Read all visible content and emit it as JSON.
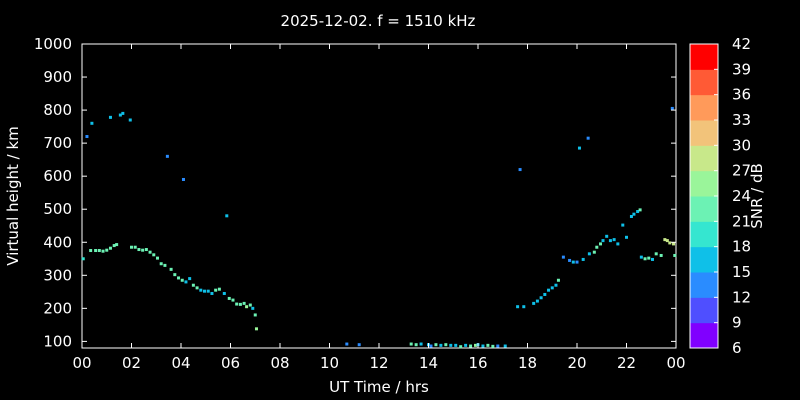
{
  "chart_data": {
    "type": "scatter",
    "title": "2025-12-02. f = 1510 kHz",
    "xlabel": "UT Time / hrs",
    "ylabel": "Virtual height / km",
    "colorbar_label": "SNR / dB",
    "xlim": [
      0,
      24
    ],
    "ylim": [
      80,
      1000
    ],
    "x_ticks": [
      "00",
      "02",
      "04",
      "06",
      "08",
      "10",
      "12",
      "14",
      "16",
      "18",
      "20",
      "22",
      "00"
    ],
    "y_ticks": [
      "100",
      "200",
      "300",
      "400",
      "500",
      "600",
      "700",
      "800",
      "900",
      "1000"
    ],
    "colorbar_ticks": [
      "6",
      "9",
      "12",
      "15",
      "18",
      "21",
      "24",
      "27",
      "30",
      "33",
      "36",
      "39",
      "42"
    ],
    "colorbar_colors": [
      "#8000ff",
      "#4f4fff",
      "#2a8cff",
      "#0fc0e8",
      "#35e6d0",
      "#6cf2b4",
      "#9af59a",
      "#c8e88a",
      "#f2c37a",
      "#ff9a5a",
      "#ff5a35",
      "#ff0000"
    ],
    "points": [
      {
        "x": 0.05,
        "y": 350,
        "snr": 18
      },
      {
        "x": 0.2,
        "y": 720,
        "snr": 12
      },
      {
        "x": 0.4,
        "y": 760,
        "snr": 15
      },
      {
        "x": 0.35,
        "y": 375,
        "snr": 22
      },
      {
        "x": 0.55,
        "y": 375,
        "snr": 22
      },
      {
        "x": 0.7,
        "y": 375,
        "snr": 22
      },
      {
        "x": 0.85,
        "y": 373,
        "snr": 22
      },
      {
        "x": 1.0,
        "y": 376,
        "snr": 22
      },
      {
        "x": 1.15,
        "y": 382,
        "snr": 22
      },
      {
        "x": 1.3,
        "y": 390,
        "snr": 22
      },
      {
        "x": 1.4,
        "y": 393,
        "snr": 22
      },
      {
        "x": 1.15,
        "y": 778,
        "snr": 15
      },
      {
        "x": 1.55,
        "y": 785,
        "snr": 15
      },
      {
        "x": 1.65,
        "y": 790,
        "snr": 15
      },
      {
        "x": 1.95,
        "y": 770,
        "snr": 15
      },
      {
        "x": 2.0,
        "y": 385,
        "snr": 22
      },
      {
        "x": 2.15,
        "y": 385,
        "snr": 22
      },
      {
        "x": 2.3,
        "y": 378,
        "snr": 22
      },
      {
        "x": 2.45,
        "y": 376,
        "snr": 22
      },
      {
        "x": 2.6,
        "y": 378,
        "snr": 22
      },
      {
        "x": 2.75,
        "y": 370,
        "snr": 22
      },
      {
        "x": 2.9,
        "y": 362,
        "snr": 22
      },
      {
        "x": 3.05,
        "y": 352,
        "snr": 22
      },
      {
        "x": 3.2,
        "y": 335,
        "snr": 22
      },
      {
        "x": 3.35,
        "y": 330,
        "snr": 22
      },
      {
        "x": 3.45,
        "y": 660,
        "snr": 12
      },
      {
        "x": 3.6,
        "y": 318,
        "snr": 22
      },
      {
        "x": 3.75,
        "y": 302,
        "snr": 22
      },
      {
        "x": 3.9,
        "y": 292,
        "snr": 22
      },
      {
        "x": 4.05,
        "y": 285,
        "snr": 22
      },
      {
        "x": 4.1,
        "y": 590,
        "snr": 12
      },
      {
        "x": 4.2,
        "y": 280,
        "snr": 15
      },
      {
        "x": 4.35,
        "y": 290,
        "snr": 15
      },
      {
        "x": 4.5,
        "y": 270,
        "snr": 22
      },
      {
        "x": 4.65,
        "y": 262,
        "snr": 22
      },
      {
        "x": 4.8,
        "y": 255,
        "snr": 15
      },
      {
        "x": 4.95,
        "y": 252,
        "snr": 15
      },
      {
        "x": 5.1,
        "y": 252,
        "snr": 15
      },
      {
        "x": 5.25,
        "y": 245,
        "snr": 15
      },
      {
        "x": 5.4,
        "y": 255,
        "snr": 22
      },
      {
        "x": 5.55,
        "y": 258,
        "snr": 22
      },
      {
        "x": 5.75,
        "y": 245,
        "snr": 15
      },
      {
        "x": 5.85,
        "y": 480,
        "snr": 15
      },
      {
        "x": 5.95,
        "y": 230,
        "snr": 22
      },
      {
        "x": 6.1,
        "y": 225,
        "snr": 22
      },
      {
        "x": 6.25,
        "y": 213,
        "snr": 22
      },
      {
        "x": 6.4,
        "y": 212,
        "snr": 22
      },
      {
        "x": 6.55,
        "y": 215,
        "snr": 22
      },
      {
        "x": 6.65,
        "y": 205,
        "snr": 24
      },
      {
        "x": 6.8,
        "y": 210,
        "snr": 22
      },
      {
        "x": 6.9,
        "y": 200,
        "snr": 15
      },
      {
        "x": 7.0,
        "y": 180,
        "snr": 22
      },
      {
        "x": 7.05,
        "y": 138,
        "snr": 24
      },
      {
        "x": 10.7,
        "y": 92,
        "snr": 12
      },
      {
        "x": 11.2,
        "y": 90,
        "snr": 12
      },
      {
        "x": 13.3,
        "y": 92,
        "snr": 22
      },
      {
        "x": 13.5,
        "y": 90,
        "snr": 22
      },
      {
        "x": 13.7,
        "y": 92,
        "snr": 15
      },
      {
        "x": 14.0,
        "y": 90,
        "snr": 15
      },
      {
        "x": 14.1,
        "y": 86,
        "snr": 12
      },
      {
        "x": 14.3,
        "y": 90,
        "snr": 22
      },
      {
        "x": 14.5,
        "y": 88,
        "snr": 15
      },
      {
        "x": 14.7,
        "y": 90,
        "snr": 22
      },
      {
        "x": 14.9,
        "y": 88,
        "snr": 15
      },
      {
        "x": 15.1,
        "y": 88,
        "snr": 15
      },
      {
        "x": 15.3,
        "y": 84,
        "snr": 22
      },
      {
        "x": 15.5,
        "y": 88,
        "snr": 15
      },
      {
        "x": 15.7,
        "y": 86,
        "snr": 22
      },
      {
        "x": 15.9,
        "y": 88,
        "snr": 24
      },
      {
        "x": 16.0,
        "y": 90,
        "snr": 15
      },
      {
        "x": 16.2,
        "y": 86,
        "snr": 15
      },
      {
        "x": 16.4,
        "y": 88,
        "snr": 22
      },
      {
        "x": 16.6,
        "y": 85,
        "snr": 22
      },
      {
        "x": 16.8,
        "y": 86,
        "snr": 12
      },
      {
        "x": 17.1,
        "y": 86,
        "snr": 15
      },
      {
        "x": 17.6,
        "y": 205,
        "snr": 15
      },
      {
        "x": 17.7,
        "y": 620,
        "snr": 12
      },
      {
        "x": 17.85,
        "y": 205,
        "snr": 15
      },
      {
        "x": 18.25,
        "y": 215,
        "snr": 15
      },
      {
        "x": 18.4,
        "y": 222,
        "snr": 15
      },
      {
        "x": 18.55,
        "y": 232,
        "snr": 15
      },
      {
        "x": 18.7,
        "y": 242,
        "snr": 15
      },
      {
        "x": 18.85,
        "y": 255,
        "snr": 15
      },
      {
        "x": 19.0,
        "y": 262,
        "snr": 15
      },
      {
        "x": 19.15,
        "y": 270,
        "snr": 15
      },
      {
        "x": 19.25,
        "y": 285,
        "snr": 22
      },
      {
        "x": 19.45,
        "y": 355,
        "snr": 12
      },
      {
        "x": 19.7,
        "y": 345,
        "snr": 12
      },
      {
        "x": 19.85,
        "y": 340,
        "snr": 15
      },
      {
        "x": 20.0,
        "y": 340,
        "snr": 12
      },
      {
        "x": 20.1,
        "y": 685,
        "snr": 15
      },
      {
        "x": 20.25,
        "y": 348,
        "snr": 15
      },
      {
        "x": 20.45,
        "y": 715,
        "snr": 12
      },
      {
        "x": 20.5,
        "y": 365,
        "snr": 15
      },
      {
        "x": 20.7,
        "y": 370,
        "snr": 22
      },
      {
        "x": 20.8,
        "y": 385,
        "snr": 22
      },
      {
        "x": 20.95,
        "y": 395,
        "snr": 22
      },
      {
        "x": 21.05,
        "y": 405,
        "snr": 15
      },
      {
        "x": 21.2,
        "y": 418,
        "snr": 15
      },
      {
        "x": 21.35,
        "y": 405,
        "snr": 15
      },
      {
        "x": 21.5,
        "y": 408,
        "snr": 15
      },
      {
        "x": 21.65,
        "y": 395,
        "snr": 15
      },
      {
        "x": 21.85,
        "y": 452,
        "snr": 15
      },
      {
        "x": 22.0,
        "y": 415,
        "snr": 15
      },
      {
        "x": 22.2,
        "y": 478,
        "snr": 15
      },
      {
        "x": 22.3,
        "y": 485,
        "snr": 15
      },
      {
        "x": 22.45,
        "y": 493,
        "snr": 15
      },
      {
        "x": 22.55,
        "y": 498,
        "snr": 22
      },
      {
        "x": 22.6,
        "y": 355,
        "snr": 15
      },
      {
        "x": 22.75,
        "y": 350,
        "snr": 22
      },
      {
        "x": 22.9,
        "y": 352,
        "snr": 22
      },
      {
        "x": 23.05,
        "y": 348,
        "snr": 15
      },
      {
        "x": 23.2,
        "y": 365,
        "snr": 22
      },
      {
        "x": 23.4,
        "y": 360,
        "snr": 22
      },
      {
        "x": 23.55,
        "y": 408,
        "snr": 27
      },
      {
        "x": 23.65,
        "y": 405,
        "snr": 27
      },
      {
        "x": 23.75,
        "y": 398,
        "snr": 27
      },
      {
        "x": 23.85,
        "y": 805,
        "snr": 12
      },
      {
        "x": 23.9,
        "y": 395,
        "snr": 27
      },
      {
        "x": 23.95,
        "y": 360,
        "snr": 22
      }
    ]
  }
}
